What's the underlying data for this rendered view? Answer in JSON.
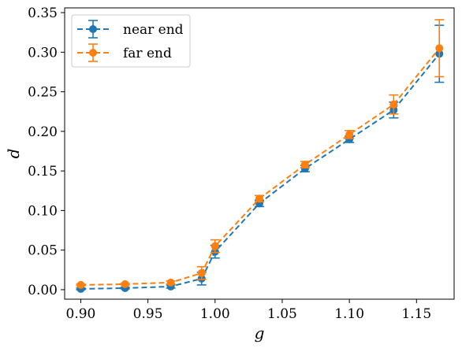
{
  "chart_data": {
    "type": "line",
    "title": "",
    "xlabel": "g",
    "ylabel": "d",
    "xlim": [
      0.888,
      1.178
    ],
    "ylim": [
      -0.012,
      0.356
    ],
    "xticks": [
      0.9,
      0.95,
      1.0,
      1.05,
      1.1,
      1.15
    ],
    "xtick_labels": [
      "0.90",
      "0.95",
      "1.00",
      "1.05",
      "1.10",
      "1.15"
    ],
    "yticks": [
      0.0,
      0.05,
      0.1,
      0.15,
      0.2,
      0.25,
      0.3,
      0.35
    ],
    "ytick_labels": [
      "0.00",
      "0.05",
      "0.10",
      "0.15",
      "0.20",
      "0.25",
      "0.30",
      "0.35"
    ],
    "grid": false,
    "legend": "top-left",
    "series": [
      {
        "name": "near end",
        "color": "#1f77b4",
        "style": "dashed",
        "marker": "circle",
        "x": [
          0.9,
          0.933,
          0.967,
          0.99,
          1.0,
          1.033,
          1.067,
          1.1,
          1.133,
          1.167
        ],
        "y": [
          0.001,
          0.002,
          0.004,
          0.014,
          0.048,
          0.109,
          0.153,
          0.19,
          0.227,
          0.298
        ],
        "err": [
          0.001,
          0.001,
          0.002,
          0.008,
          0.008,
          0.004,
          0.004,
          0.004,
          0.01,
          0.036
        ]
      },
      {
        "name": "far end",
        "color": "#ff7f0e",
        "style": "dashed",
        "marker": "circle",
        "x": [
          0.9,
          0.933,
          0.967,
          0.99,
          1.0,
          1.033,
          1.067,
          1.1,
          1.133,
          1.167
        ],
        "y": [
          0.006,
          0.007,
          0.009,
          0.021,
          0.055,
          0.115,
          0.158,
          0.196,
          0.234,
          0.305
        ],
        "err": [
          0.001,
          0.001,
          0.002,
          0.008,
          0.008,
          0.004,
          0.004,
          0.005,
          0.012,
          0.036
        ]
      }
    ]
  }
}
